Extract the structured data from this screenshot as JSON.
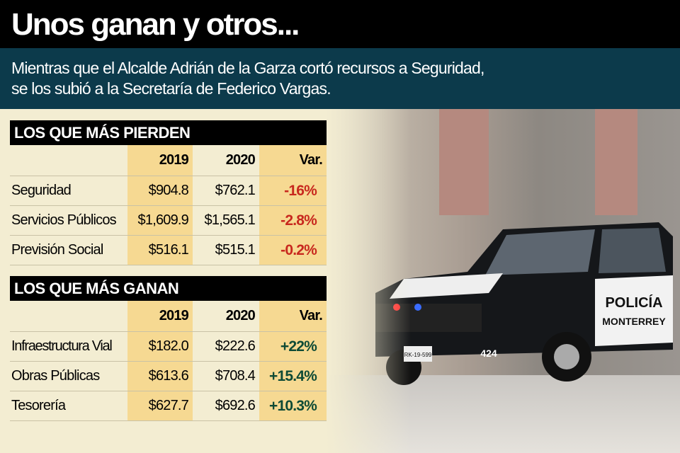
{
  "title": "Unos ganan y otros...",
  "subtitle": [
    "Mientras que el Alcalde Adrián de la Garza cortó recursos a Seguridad,",
    "se los subió a la Secretaría de Federico Vargas."
  ],
  "photo_lettering": {
    "door": "POLICÍA",
    "door2": "MONTERREY",
    "unit": "424",
    "plate": "RK-19-599"
  },
  "colors": {
    "negative": "#c8281e",
    "positive": "#0d4a35",
    "highlight": "#f6d992",
    "subtitle_bg": "#0c3a4b"
  },
  "tables": [
    {
      "title": "LOS QUE MÁS PIERDEN",
      "headers": [
        "",
        "2019",
        "2020",
        "Var."
      ],
      "rows": [
        [
          "Seguridad",
          "$904.8",
          "$762.1",
          "-16%"
        ],
        [
          "Servicios Públicos",
          "$1,609.9",
          "$1,565.1",
          "-2.8%"
        ],
        [
          "Previsión Social",
          "$516.1",
          "$515.1",
          "-0.2%"
        ]
      ]
    },
    {
      "title": "LOS QUE MÁS GANAN",
      "headers": [
        "",
        "2019",
        "2020",
        "Var."
      ],
      "rows": [
        [
          "Infraestructura Vial",
          "$182.0",
          "$222.6",
          "+22%"
        ],
        [
          "Obras Públicas",
          "$613.6",
          "$708.4",
          "+15.4%"
        ],
        [
          "Tesorería",
          "$627.7",
          "$692.6",
          "+10.3%"
        ]
      ]
    }
  ]
}
